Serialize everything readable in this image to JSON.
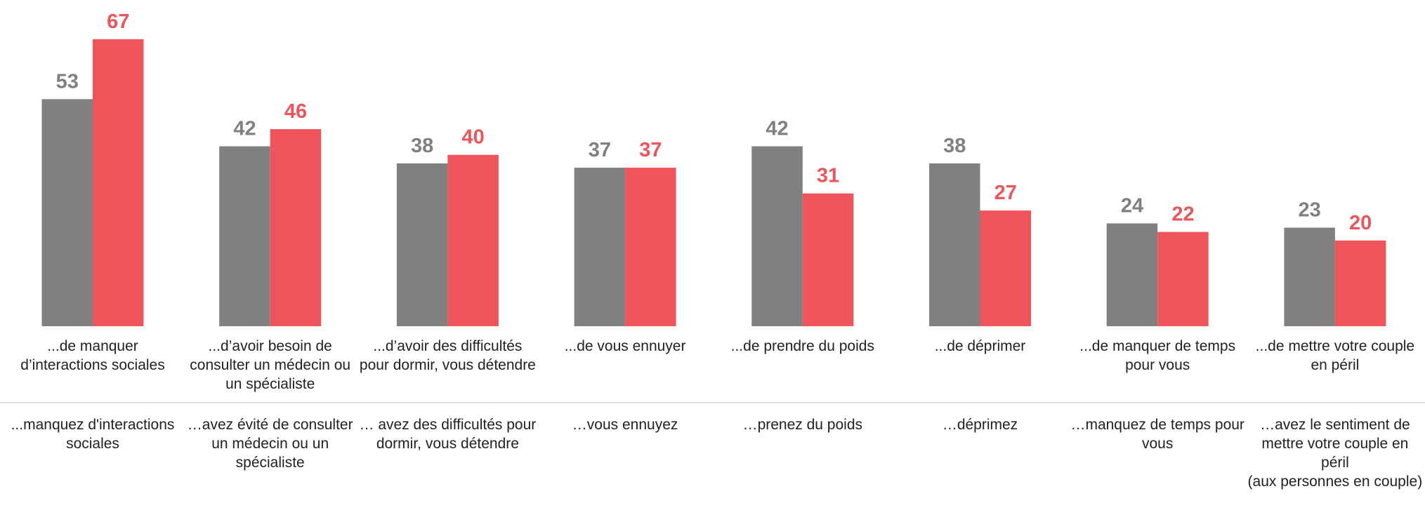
{
  "chart_data": {
    "type": "bar",
    "categories": [
      "...de manquer d’interactions sociales",
      "...d’avoir besoin de consulter un médecin ou un spécialiste",
      "...d’avoir des difficultés pour dormir, vous détendre",
      "...de vous ennuyer",
      "...de prendre du poids",
      "...de déprimer",
      "...de manquer de temps pour vous",
      "...de mettre votre couple en péril"
    ],
    "sublabels": [
      "...manquez d'interactions sociales",
      "…avez évité de consulter un médecin ou un spécialiste",
      "… avez des difficultés pour dormir, vous détendre",
      "…vous ennuyez",
      "…prenez du poids",
      "…déprimez",
      "…manquez de temps pour vous",
      "…avez le sentiment de mettre votre couple en péril\n(aux personnes en couple)"
    ],
    "series": [
      {
        "color": "#808080",
        "values": [
          53,
          42,
          38,
          37,
          42,
          38,
          24,
          23
        ]
      },
      {
        "color": "#f0545b",
        "values": [
          67,
          46,
          40,
          37,
          31,
          27,
          22,
          20
        ]
      }
    ],
    "ylim": [
      0,
      75
    ]
  }
}
